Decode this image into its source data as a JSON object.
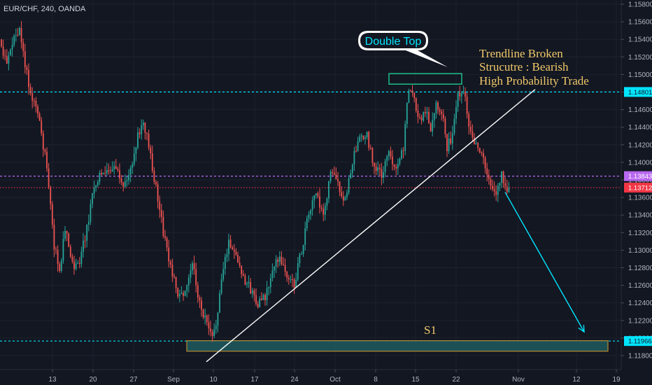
{
  "symbol_label": "EUR/CHF, 240, OANDA",
  "colors": {
    "background": "#131722",
    "up": "#26a69a",
    "down": "#ef5350",
    "grid": "#1e222d",
    "axis_text": "#b2b5be",
    "level_cyan": "#00e5ff",
    "level_magenta": "#b968f0",
    "level_red": "#f23645",
    "note_gold": "#f0c96a",
    "zone_fill": "#1e5b5e",
    "zone_border": "#b58a2f",
    "double_top_border": "#1fc98f",
    "trendline": "#ffffff"
  },
  "chart_data": {
    "type": "candlestick",
    "symbol": "EUR/CHF",
    "timeframe": "240",
    "broker": "OANDA",
    "y_axis": {
      "range": [
        1.118,
        1.158
      ],
      "ticks": [
        "1.11800",
        "1.12000",
        "1.12200",
        "1.12400",
        "1.12600",
        "1.12800",
        "1.13000",
        "1.13200",
        "1.13400",
        "1.13600",
        "1.13800",
        "1.14000",
        "1.14200",
        "1.14400",
        "1.14600",
        "1.14800",
        "1.15000",
        "1.15200",
        "1.15400",
        "1.15600",
        "1.15800"
      ]
    },
    "x_axis": {
      "ticks": [
        "13",
        "20",
        "27",
        "Sep",
        "10",
        "17",
        "24",
        "Oct",
        "8",
        "15",
        "22",
        "Nov",
        "12",
        "19"
      ]
    },
    "price_levels": [
      {
        "label": "1.14801",
        "value": 1.14801,
        "style": "dashed",
        "color": "cyan"
      },
      {
        "label": "1.13843",
        "value": 1.13843,
        "style": "dashed",
        "color": "magenta"
      },
      {
        "label": "1.13712",
        "value": 1.13712,
        "style": "dotted",
        "color": "red"
      },
      {
        "label": "1.11966",
        "value": 1.11966,
        "style": "dashed",
        "color": "cyan"
      }
    ],
    "support_zone": {
      "label": "S1",
      "from": 1.1185,
      "to": 1.1197
    },
    "double_top_zone": {
      "label": "Double Top",
      "from": 1.1489,
      "to": 1.1501
    },
    "trendline": {
      "start": {
        "date": "Sep 9",
        "price": 1.1173
      },
      "end": {
        "date": "Oct 30",
        "price": 1.1483
      }
    },
    "projection": {
      "start": {
        "date": "Oct 27",
        "price": 1.1366
      },
      "end": {
        "date": "Nov 14",
        "price": 1.1207
      }
    },
    "annotations": [
      "Trendline Broken",
      "Strucutre : Bearish",
      "High Probability Trade"
    ],
    "path_anchors": [
      {
        "t": 0,
        "p": 1.154
      },
      {
        "t": 4,
        "p": 1.1512
      },
      {
        "t": 8,
        "p": 1.1545
      },
      {
        "t": 11,
        "p": 1.1548
      },
      {
        "t": 17,
        "p": 1.1478
      },
      {
        "t": 21,
        "p": 1.1455
      },
      {
        "t": 26,
        "p": 1.1395
      },
      {
        "t": 30,
        "p": 1.1305
      },
      {
        "t": 33,
        "p": 1.1275
      },
      {
        "t": 36,
        "p": 1.1325
      },
      {
        "t": 40,
        "p": 1.1285
      },
      {
        "t": 43,
        "p": 1.128
      },
      {
        "t": 48,
        "p": 1.1325
      },
      {
        "t": 52,
        "p": 1.1375
      },
      {
        "t": 56,
        "p": 1.139
      },
      {
        "t": 60,
        "p": 1.1385
      },
      {
        "t": 64,
        "p": 1.1392
      },
      {
        "t": 68,
        "p": 1.1375
      },
      {
        "t": 72,
        "p": 1.1392
      },
      {
        "t": 76,
        "p": 1.1432
      },
      {
        "t": 79,
        "p": 1.1448
      },
      {
        "t": 82,
        "p": 1.142
      },
      {
        "t": 86,
        "p": 1.137
      },
      {
        "t": 90,
        "p": 1.132
      },
      {
        "t": 94,
        "p": 1.1283
      },
      {
        "t": 98,
        "p": 1.1247
      },
      {
        "t": 102,
        "p": 1.1255
      },
      {
        "t": 106,
        "p": 1.1285
      },
      {
        "t": 110,
        "p": 1.124
      },
      {
        "t": 114,
        "p": 1.1215
      },
      {
        "t": 117,
        "p": 1.1198
      },
      {
        "t": 120,
        "p": 1.123
      },
      {
        "t": 123,
        "p": 1.128
      },
      {
        "t": 126,
        "p": 1.131
      },
      {
        "t": 130,
        "p": 1.1295
      },
      {
        "t": 134,
        "p": 1.127
      },
      {
        "t": 138,
        "p": 1.1255
      },
      {
        "t": 142,
        "p": 1.124
      },
      {
        "t": 146,
        "p": 1.1245
      },
      {
        "t": 150,
        "p": 1.1275
      },
      {
        "t": 154,
        "p": 1.1295
      },
      {
        "t": 158,
        "p": 1.1268
      },
      {
        "t": 162,
        "p": 1.1262
      },
      {
        "t": 166,
        "p": 1.13
      },
      {
        "t": 170,
        "p": 1.1342
      },
      {
        "t": 174,
        "p": 1.1365
      },
      {
        "t": 178,
        "p": 1.1335
      },
      {
        "t": 182,
        "p": 1.139
      },
      {
        "t": 186,
        "p": 1.1375
      },
      {
        "t": 190,
        "p": 1.1355
      },
      {
        "t": 194,
        "p": 1.1402
      },
      {
        "t": 198,
        "p": 1.1425
      },
      {
        "t": 202,
        "p": 1.143
      },
      {
        "t": 206,
        "p": 1.1395
      },
      {
        "t": 210,
        "p": 1.1385
      },
      {
        "t": 214,
        "p": 1.141
      },
      {
        "t": 218,
        "p": 1.1395
      },
      {
        "t": 222,
        "p": 1.1418
      },
      {
        "t": 225,
        "p": 1.1485
      },
      {
        "t": 228,
        "p": 1.147
      },
      {
        "t": 231,
        "p": 1.1448
      },
      {
        "t": 234,
        "p": 1.146
      },
      {
        "t": 237,
        "p": 1.144
      },
      {
        "t": 240,
        "p": 1.1468
      },
      {
        "t": 243,
        "p": 1.146
      },
      {
        "t": 246,
        "p": 1.1418
      },
      {
        "t": 249,
        "p": 1.143
      },
      {
        "t": 252,
        "p": 1.1478
      },
      {
        "t": 255,
        "p": 1.1485
      },
      {
        "t": 258,
        "p": 1.1445
      },
      {
        "t": 261,
        "p": 1.1425
      },
      {
        "t": 264,
        "p": 1.1415
      },
      {
        "t": 267,
        "p": 1.1395
      },
      {
        "t": 270,
        "p": 1.137
      },
      {
        "t": 273,
        "p": 1.1365
      },
      {
        "t": 276,
        "p": 1.1385
      },
      {
        "t": 279,
        "p": 1.1371
      }
    ]
  }
}
